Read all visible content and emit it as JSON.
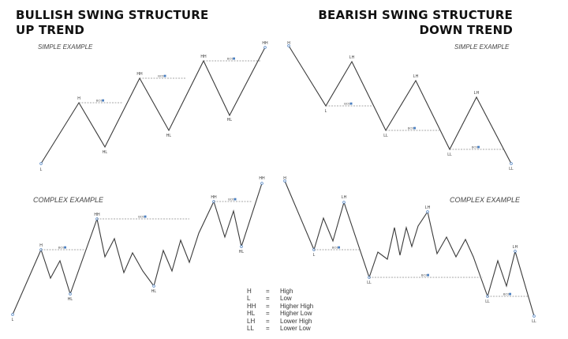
{
  "bullish": {
    "title_line1": "BULLISH SWING STRUCTURE",
    "title_line2": "UP TREND",
    "simple_label": "SIMPLE EXAMPLE",
    "complex_label": "COMPLEX EXAMPLE"
  },
  "bearish": {
    "title_line1": "BEARISH SWING STRUCTURE",
    "title_line2": "DOWN TREND",
    "simple_label": "SIMPLE EXAMPLE",
    "complex_label": "COMPLEX EXAMPLE"
  },
  "bos_label": "BOS",
  "colors": {
    "line": "#3a3a3a",
    "marker": "#4a7fc1",
    "dashed": "#8a8a8a"
  },
  "legend": [
    {
      "abbr": "H",
      "eq": "=",
      "meaning": "High"
    },
    {
      "abbr": "L",
      "eq": "=",
      "meaning": "Low"
    },
    {
      "abbr": "HH",
      "eq": "=",
      "meaning": "Higher High"
    },
    {
      "abbr": "HL",
      "eq": "=",
      "meaning": "Higher Low"
    },
    {
      "abbr": "LH",
      "eq": "=",
      "meaning": "Lower High"
    },
    {
      "abbr": "LL",
      "eq": "=",
      "meaning": "Lower Low"
    }
  ]
}
